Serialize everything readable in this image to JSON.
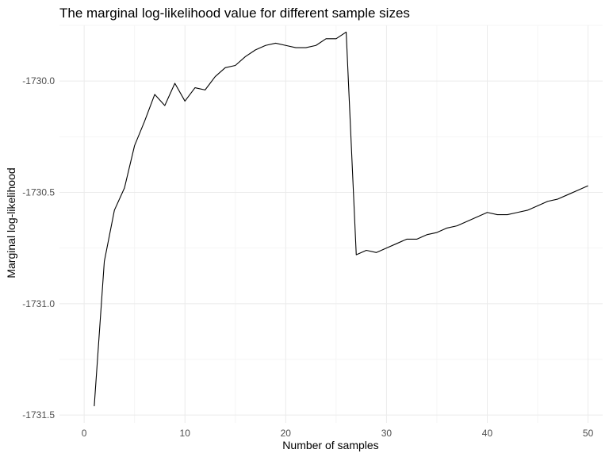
{
  "chart_data": {
    "type": "line",
    "title": "The marginal log-likelihood value for different sample sizes",
    "xlabel": "Number of samples",
    "ylabel": "Marginal log-likelihood",
    "xlim": [
      -2.45,
      51.45
    ],
    "ylim": [
      -1731.535,
      -1729.75
    ],
    "x_ticks": [
      0,
      10,
      20,
      30,
      40,
      50
    ],
    "x_tick_labels": [
      "0",
      "10",
      "20",
      "30",
      "40",
      "50"
    ],
    "y_ticks": [
      -1731.5,
      -1731.0,
      -1730.5,
      -1730.0
    ],
    "y_tick_labels": [
      "-1731.5",
      "-1731.0",
      "-1730.5",
      "-1730.0"
    ],
    "grid": true,
    "line_color": "#000000",
    "series": [
      {
        "x": [
          1,
          2,
          3,
          4,
          5,
          6,
          7,
          8,
          9,
          10,
          11,
          12,
          13,
          14,
          15,
          16,
          17,
          18,
          19,
          20,
          21,
          22,
          23,
          24,
          25,
          26,
          27,
          28,
          29,
          30,
          31,
          32,
          33,
          34,
          35,
          36,
          37,
          38,
          39,
          40,
          41,
          42,
          43,
          44,
          45,
          46,
          47,
          48,
          49,
          50
        ],
        "y": [
          -1731.46,
          -1730.81,
          -1730.58,
          -1730.48,
          -1730.29,
          -1730.18,
          -1730.06,
          -1730.11,
          -1730.01,
          -1730.09,
          -1730.03,
          -1730.04,
          -1729.98,
          -1729.94,
          -1729.93,
          -1729.89,
          -1729.86,
          -1729.84,
          -1729.83,
          -1729.84,
          -1729.85,
          -1729.85,
          -1729.84,
          -1729.81,
          -1729.81,
          -1729.78,
          -1730.78,
          -1730.76,
          -1730.77,
          -1730.75,
          -1730.73,
          -1730.71,
          -1730.71,
          -1730.69,
          -1730.68,
          -1730.66,
          -1730.65,
          -1730.63,
          -1730.61,
          -1730.59,
          -1730.6,
          -1730.6,
          -1730.59,
          -1730.58,
          -1730.56,
          -1730.54,
          -1730.53,
          -1730.51,
          -1730.49,
          -1730.47
        ]
      }
    ]
  }
}
